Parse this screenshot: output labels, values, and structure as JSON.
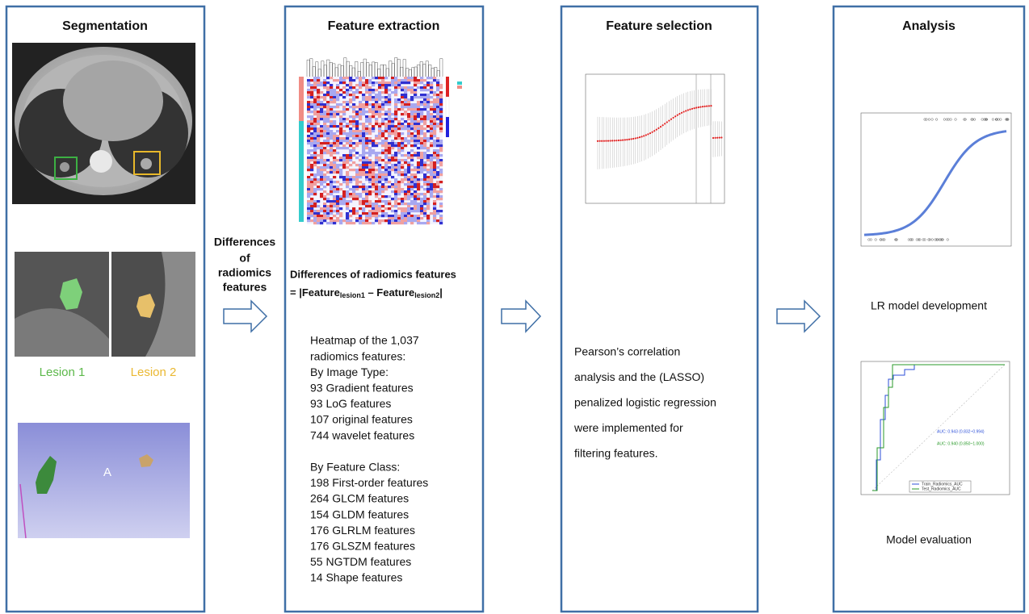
{
  "panels": [
    {
      "title": "Segmentation"
    },
    {
      "title": "Feature extraction"
    },
    {
      "title": "Feature selection"
    },
    {
      "title": "Analysis"
    }
  ],
  "segmentation": {
    "lesion_labels": [
      "Lesion 1",
      "Lesion 2"
    ],
    "view_label": "A"
  },
  "transition_label": [
    "Differences",
    "of",
    "radiomics",
    "features"
  ],
  "feature_extraction": {
    "formula_title": "Differences of radiomics features",
    "formula": {
      "prefix": "= |Feature",
      "sub1": "lesion1",
      "middle": " – Feature",
      "sub2": "lesion2",
      "suffix": "|"
    },
    "description": [
      "Heatmap of the 1,037",
      "radiomics features:",
      "By Image Type:",
      "93 Gradient features",
      "93 LoG features",
      "107 original features",
      "744 wavelet features",
      "",
      "By Feature Class:",
      "198 First-order features",
      "264 GLCM features",
      "154 GLDM features",
      "176 GLRLM features",
      "176 GLSZM features",
      "55 NGTDM features",
      "14 Shape features"
    ]
  },
  "feature_selection": {
    "description": [
      "Pearson’s correlation",
      "analysis and the (LASSO)",
      "penalized logistic regression",
      "were implemented for",
      "filtering features."
    ]
  },
  "analysis": {
    "lr_caption": "LR model development",
    "eval_caption": "Model evaluation",
    "roc_legend": [
      "Train_Radiomics_AUC",
      "Test_Radiomics_AUC"
    ],
    "roc_auc_labels": [
      "AUC: 0.943 (0.832~0.994)",
      "AUC: 0.940 (0.850~1.000)"
    ]
  }
}
